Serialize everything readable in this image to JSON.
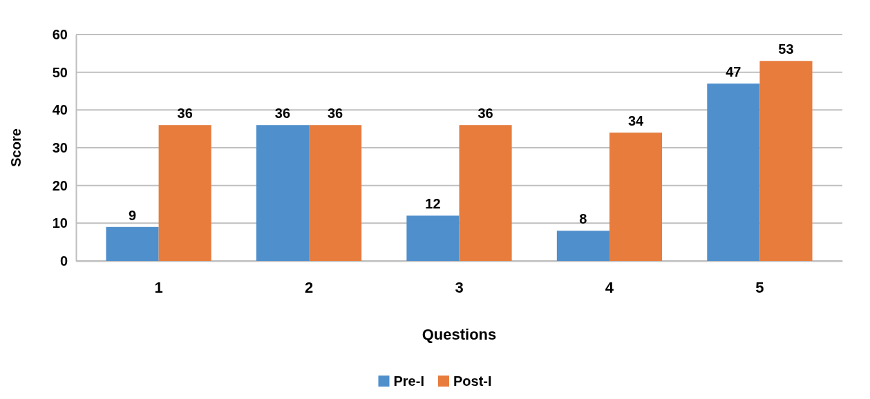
{
  "chart_data": {
    "type": "bar",
    "xlabel": "Questions",
    "ylabel": "Score",
    "categories": [
      "1",
      "2",
      "3",
      "4",
      "5"
    ],
    "series": [
      {
        "name": "Pre-I",
        "color": "#4f8fcc",
        "values": [
          9,
          36,
          12,
          8,
          47
        ]
      },
      {
        "name": "Post-I",
        "color": "#e77c3c",
        "values": [
          36,
          36,
          36,
          34,
          53
        ]
      }
    ],
    "ylim": [
      0,
      60
    ],
    "yticks": [
      0,
      10,
      20,
      30,
      40,
      50,
      60
    ],
    "grid": "y",
    "legend": "bottom",
    "data_labels": true
  }
}
